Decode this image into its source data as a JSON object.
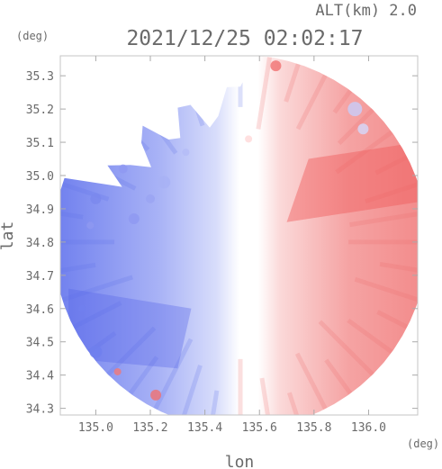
{
  "chart_data": {
    "type": "heatmap",
    "title": "2021/12/25 02:02:17",
    "altitude_label": "ALT(km) 2.0",
    "xlabel": "lon",
    "ylabel": "lat",
    "xunit": "(deg)",
    "yunit": "(deg)",
    "xlim": [
      134.87,
      136.18
    ],
    "ylim": [
      34.28,
      35.36
    ],
    "x_ticks": [
      135.0,
      135.2,
      135.4,
      135.6,
      135.8,
      136.0
    ],
    "x_tick_labels": [
      "135.0",
      "135.2",
      "135.4",
      "135.6",
      "135.8",
      "136.0"
    ],
    "y_ticks": [
      34.3,
      34.4,
      34.5,
      34.6,
      34.7,
      34.8,
      34.9,
      35.0,
      35.1,
      35.2,
      35.3
    ],
    "y_tick_labels": [
      "34.3",
      "34.4",
      "34.5",
      "34.6",
      "34.7",
      "34.8",
      "34.9",
      "35.0",
      "35.1",
      "35.2",
      "35.3"
    ],
    "radar_center": [
      135.53,
      34.8
    ],
    "colors": {
      "approaching": "#7080ee",
      "receding": "#f07878",
      "near_zero": "#ffffff",
      "axis": "#bbbbbb",
      "text": "#6a6a6a"
    }
  }
}
